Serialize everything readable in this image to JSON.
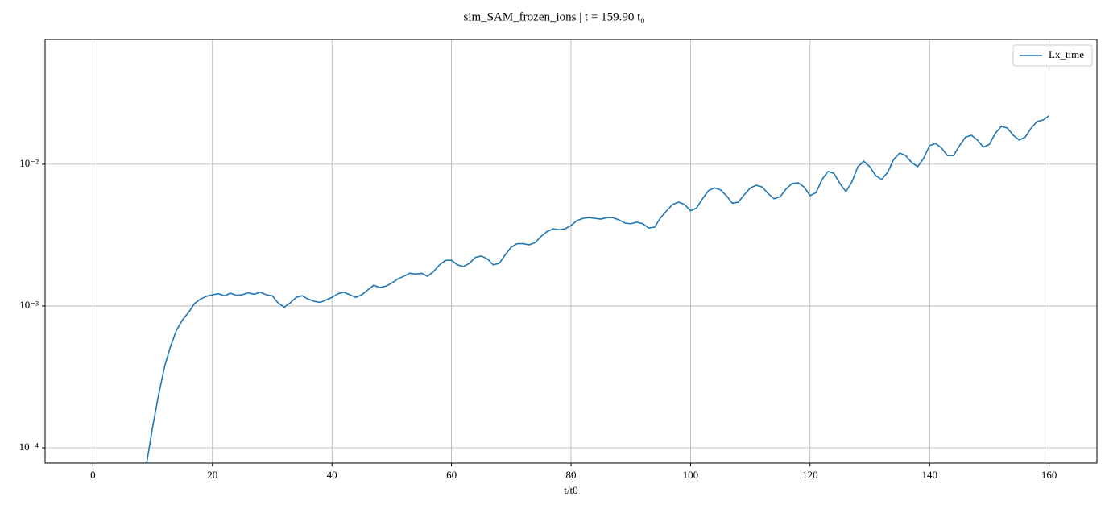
{
  "chart_data": {
    "type": "line",
    "title": "sim_SAM_frozen_ions | t = 159.90 t₀",
    "xlabel": "t/t0",
    "log_y": true,
    "grid": true,
    "legend": "upper right",
    "xlim": [
      -8,
      168
    ],
    "xticks": [
      0,
      20,
      40,
      60,
      80,
      100,
      120,
      140,
      160
    ],
    "ylim": [
      7.8e-05,
      0.0758
    ],
    "yticks": [
      {
        "value": 0.0001,
        "label": "10⁻⁴"
      },
      {
        "value": 0.001,
        "label": "10⁻³"
      },
      {
        "value": 0.01,
        "label": "10⁻²"
      }
    ],
    "x": [
      9,
      10,
      11,
      12,
      13,
      14,
      15,
      16,
      17,
      18,
      19,
      20,
      21,
      22,
      23,
      24,
      25,
      26,
      27,
      28,
      29,
      30,
      31,
      32,
      33,
      34,
      35,
      36,
      37,
      38,
      39,
      40,
      41,
      42,
      43,
      44,
      45,
      46,
      47,
      48,
      49,
      50,
      51,
      52,
      53,
      54,
      55,
      56,
      57,
      58,
      59,
      60,
      61,
      62,
      63,
      64,
      65,
      66,
      67,
      68,
      69,
      70,
      71,
      72,
      73,
      74,
      75,
      76,
      77,
      78,
      79,
      80,
      81,
      82,
      83,
      84,
      85,
      86,
      87,
      88,
      89,
      90,
      91,
      92,
      93,
      94,
      95,
      96,
      97,
      98,
      99,
      100,
      101,
      102,
      103,
      104,
      105,
      106,
      107,
      108,
      109,
      110,
      111,
      112,
      113,
      114,
      115,
      116,
      117,
      118,
      119,
      120,
      121,
      122,
      123,
      124,
      125,
      126,
      127,
      128,
      129,
      130,
      131,
      132,
      133,
      134,
      135,
      136,
      137,
      138,
      139,
      140,
      141,
      142,
      143,
      144,
      145,
      146,
      147,
      148,
      149,
      150,
      151,
      152,
      153,
      154,
      155,
      156,
      157,
      158,
      159,
      160
    ],
    "series": [
      {
        "name": "Lx_time",
        "color": "#1f77b4",
        "values": [
          7.8e-05,
          0.000141,
          0.000237,
          0.000375,
          0.00052,
          0.000676,
          0.0008,
          0.0009,
          0.00104,
          0.00112,
          0.00117,
          0.0012,
          0.00122,
          0.00118,
          0.00123,
          0.00119,
          0.0012,
          0.00124,
          0.00121,
          0.00125,
          0.0012,
          0.00118,
          0.00105,
          0.00098,
          0.00105,
          0.00115,
          0.00118,
          0.00112,
          0.00108,
          0.00106,
          0.0011,
          0.00115,
          0.00122,
          0.00125,
          0.0012,
          0.00115,
          0.0012,
          0.0013,
          0.0014,
          0.00135,
          0.00138,
          0.00145,
          0.00155,
          0.00162,
          0.0017,
          0.00168,
          0.0017,
          0.00162,
          0.00175,
          0.00195,
          0.0021,
          0.0021,
          0.00195,
          0.0019,
          0.002,
          0.0022,
          0.00225,
          0.00215,
          0.00195,
          0.002,
          0.0023,
          0.0026,
          0.00275,
          0.00275,
          0.0027,
          0.0028,
          0.0031,
          0.00335,
          0.0035,
          0.00345,
          0.0035,
          0.0037,
          0.004,
          0.00415,
          0.0042,
          0.00415,
          0.0041,
          0.0042,
          0.0042,
          0.00405,
          0.00385,
          0.0038,
          0.0039,
          0.0038,
          0.00355,
          0.0036,
          0.0042,
          0.0047,
          0.0052,
          0.0054,
          0.0052,
          0.0047,
          0.0049,
          0.0057,
          0.0065,
          0.0068,
          0.0066,
          0.006,
          0.0053,
          0.0054,
          0.0061,
          0.0068,
          0.0071,
          0.0069,
          0.0062,
          0.0057,
          0.0059,
          0.0067,
          0.0073,
          0.0074,
          0.0069,
          0.006,
          0.0063,
          0.0078,
          0.0089,
          0.0086,
          0.0073,
          0.0064,
          0.0075,
          0.0096,
          0.0105,
          0.0096,
          0.0083,
          0.0078,
          0.0088,
          0.0108,
          0.012,
          0.0115,
          0.0103,
          0.0096,
          0.011,
          0.0135,
          0.014,
          0.013,
          0.0115,
          0.0115,
          0.0135,
          0.0155,
          0.016,
          0.0148,
          0.0132,
          0.0138,
          0.0165,
          0.0185,
          0.018,
          0.016,
          0.0148,
          0.0155,
          0.018,
          0.02,
          0.0205,
          0.022
        ]
      }
    ]
  }
}
